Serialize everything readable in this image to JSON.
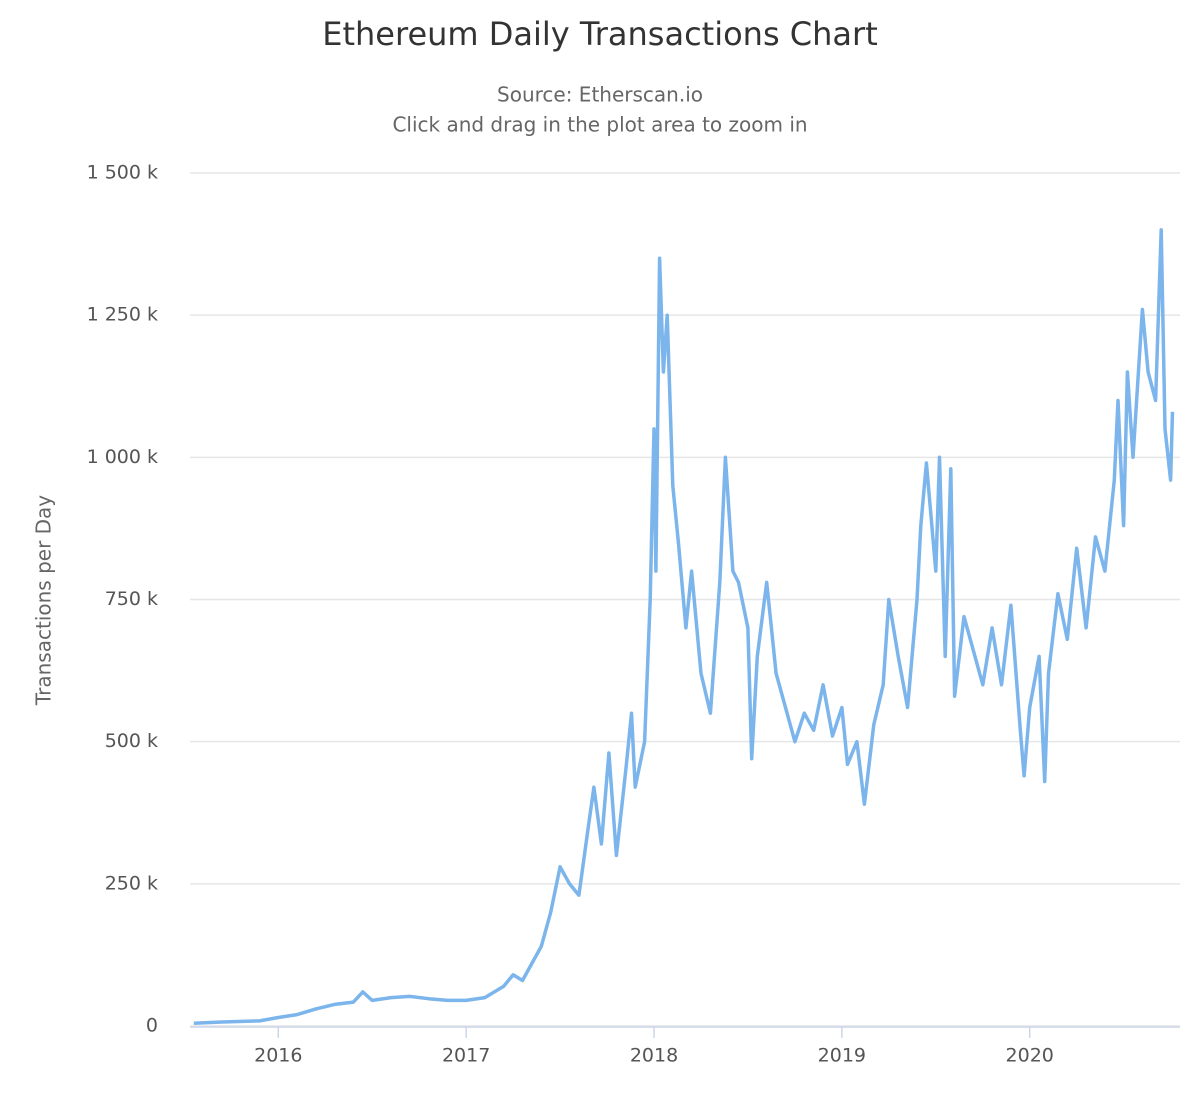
{
  "chart_data": {
    "type": "line",
    "title": "Ethereum Daily Transactions Chart",
    "subtitle": [
      "Source: Etherscan.io",
      "Click and drag in the plot area to zoom in"
    ],
    "y_label": "Transactions per Day",
    "xlim": [
      2015.53,
      2020.8
    ],
    "xticks": [
      2016,
      2017,
      2018,
      2019,
      2020
    ],
    "ylim": [
      0,
      1500000
    ],
    "yticks": [
      {
        "value": 0,
        "label": "0"
      },
      {
        "value": 250000,
        "label": "250 k"
      },
      {
        "value": 500000,
        "label": "500 k"
      },
      {
        "value": 750000,
        "label": "750 k"
      },
      {
        "value": 1000000,
        "label": "1 000 k"
      },
      {
        "value": 1250000,
        "label": "1 250 k"
      },
      {
        "value": 1500000,
        "label": "1 500 k"
      }
    ],
    "grid": true,
    "series": [
      {
        "color": "#7cb5ec",
        "x": [
          2015.55,
          2015.7,
          2015.9,
          2016.0,
          2016.1,
          2016.2,
          2016.3,
          2016.4,
          2016.45,
          2016.5,
          2016.6,
          2016.7,
          2016.8,
          2016.9,
          2017.0,
          2017.1,
          2017.2,
          2017.25,
          2017.3,
          2017.35,
          2017.4,
          2017.45,
          2017.5,
          2017.55,
          2017.6,
          2017.65,
          2017.68,
          2017.72,
          2017.76,
          2017.8,
          2017.85,
          2017.88,
          2017.9,
          2017.95,
          2017.98,
          2018.0,
          2018.01,
          2018.03,
          2018.05,
          2018.07,
          2018.1,
          2018.13,
          2018.17,
          2018.2,
          2018.25,
          2018.3,
          2018.35,
          2018.38,
          2018.42,
          2018.45,
          2018.5,
          2018.52,
          2018.55,
          2018.6,
          2018.65,
          2018.7,
          2018.75,
          2018.8,
          2018.85,
          2018.9,
          2018.95,
          2019.0,
          2019.03,
          2019.08,
          2019.12,
          2019.17,
          2019.22,
          2019.25,
          2019.3,
          2019.35,
          2019.4,
          2019.42,
          2019.45,
          2019.5,
          2019.52,
          2019.55,
          2019.58,
          2019.6,
          2019.65,
          2019.7,
          2019.75,
          2019.8,
          2019.85,
          2019.9,
          2019.95,
          2019.97,
          2020.0,
          2020.05,
          2020.08,
          2020.1,
          2020.15,
          2020.2,
          2020.25,
          2020.3,
          2020.35,
          2020.4,
          2020.45,
          2020.47,
          2020.5,
          2020.52,
          2020.55,
          2020.6,
          2020.63,
          2020.67,
          2020.7,
          2020.72,
          2020.75,
          2020.76
        ],
        "values": [
          5000,
          7000,
          9000,
          15000,
          20000,
          30000,
          38000,
          42000,
          60000,
          45000,
          50000,
          52000,
          48000,
          45000,
          45000,
          50000,
          70000,
          90000,
          80000,
          110000,
          140000,
          200000,
          280000,
          250000,
          230000,
          350000,
          420000,
          320000,
          480000,
          300000,
          450000,
          550000,
          420000,
          500000,
          750000,
          1050000,
          800000,
          1350000,
          1150000,
          1250000,
          950000,
          850000,
          700000,
          800000,
          620000,
          550000,
          780000,
          1000000,
          800000,
          780000,
          700000,
          470000,
          650000,
          780000,
          620000,
          560000,
          500000,
          550000,
          520000,
          600000,
          510000,
          560000,
          460000,
          500000,
          390000,
          530000,
          600000,
          750000,
          650000,
          560000,
          750000,
          880000,
          990000,
          800000,
          1000000,
          650000,
          980000,
          580000,
          720000,
          660000,
          600000,
          700000,
          600000,
          740000,
          520000,
          440000,
          560000,
          650000,
          430000,
          620000,
          760000,
          680000,
          840000,
          700000,
          860000,
          800000,
          960000,
          1100000,
          880000,
          1150000,
          1000000,
          1260000,
          1150000,
          1100000,
          1400000,
          1050000,
          960000,
          1080000
        ]
      }
    ]
  }
}
